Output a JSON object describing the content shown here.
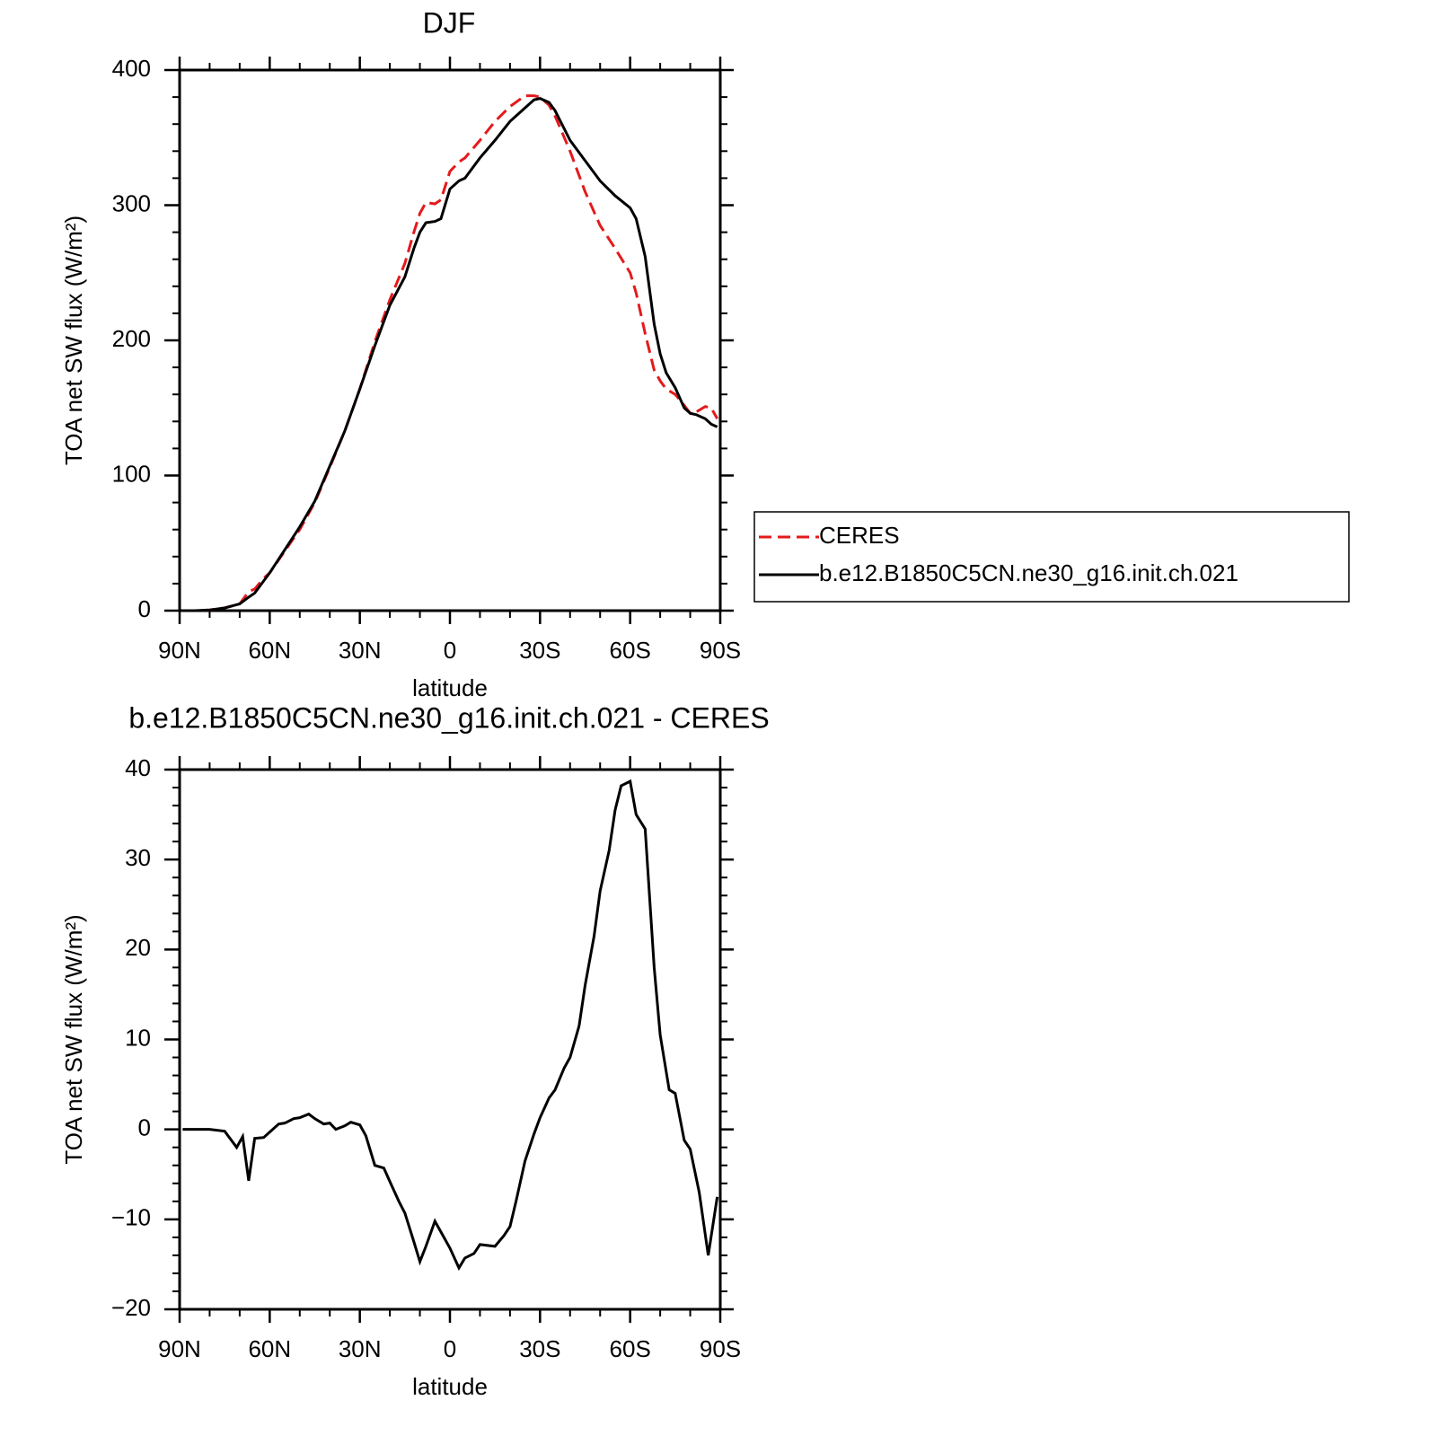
{
  "chart_data": [
    {
      "type": "line",
      "title": "DJF",
      "ylabel": "TOA net SW flux (W/m²)",
      "xlabel": "latitude",
      "xlim": [
        90,
        -90
      ],
      "ylim": [
        0,
        400
      ],
      "xticks": [
        {
          "value": 90,
          "label": "90N"
        },
        {
          "value": 60,
          "label": "60N"
        },
        {
          "value": 30,
          "label": "30N"
        },
        0,
        {
          "value": -30,
          "label": "30S"
        },
        {
          "value": -60,
          "label": "60S"
        },
        {
          "value": -90,
          "label": "90S"
        }
      ],
      "xminorticks": [
        80,
        70,
        50,
        40,
        20,
        10,
        -10,
        -20,
        -40,
        -50,
        -70,
        -80
      ],
      "yticks": [
        0,
        100,
        200,
        300,
        400
      ],
      "yminorticks": [
        20,
        40,
        60,
        80,
        120,
        140,
        160,
        180,
        220,
        240,
        260,
        280,
        320,
        340,
        360,
        380
      ],
      "legend": "right",
      "x": [
        89,
        85,
        80,
        75,
        70,
        67,
        65,
        62,
        60,
        55,
        50,
        45,
        40,
        35,
        30,
        25,
        20,
        15,
        12,
        10,
        8,
        5,
        3,
        0,
        -3,
        -5,
        -10,
        -15,
        -20,
        -25,
        -28,
        -30,
        -33,
        -35,
        -40,
        -45,
        -50,
        -55,
        -60,
        -62,
        -65,
        -68,
        -70,
        -72,
        -75,
        -78,
        -80,
        -82,
        -85,
        -87,
        -89
      ],
      "series": [
        {
          "name": "CERES",
          "color": "#e41a1c",
          "dash": true,
          "values": [
            0,
            0,
            0.5,
            2,
            5,
            14,
            16,
            24,
            28,
            44,
            60,
            80,
            106,
            133,
            164,
            199,
            230,
            257,
            280,
            294,
            302,
            301,
            304,
            325,
            332,
            335,
            348,
            362,
            373,
            381,
            381,
            380,
            374,
            366,
            340,
            310,
            285,
            268,
            250,
            235,
            205,
            178,
            170,
            164,
            160,
            152,
            146,
            147,
            151,
            150,
            142
          ]
        },
        {
          "name": "b.e12.B1850C5CN.ne30_g16.init.ch.021",
          "color": "#000000",
          "dash": false,
          "values": [
            0,
            0,
            0.5,
            2,
            5,
            10,
            13,
            22,
            28,
            45,
            62,
            81,
            107,
            133,
            164,
            196,
            226,
            247,
            268,
            280,
            287,
            288,
            290,
            312,
            318,
            320,
            335,
            348,
            362,
            372,
            378,
            379,
            376,
            370,
            348,
            333,
            318,
            307,
            298,
            290,
            262,
            212,
            190,
            176,
            165,
            150,
            146,
            145,
            142,
            138,
            136
          ]
        }
      ]
    },
    {
      "type": "line",
      "title": "b.e12.B1850C5CN.ne30_g16.init.ch.021 - CERES",
      "ylabel": "TOA net SW flux (W/m²)",
      "xlabel": "latitude",
      "xlim": [
        90,
        -90
      ],
      "ylim": [
        -20,
        40
      ],
      "xticks": [
        {
          "value": 90,
          "label": "90N"
        },
        {
          "value": 60,
          "label": "60N"
        },
        {
          "value": 30,
          "label": "30N"
        },
        0,
        {
          "value": -30,
          "label": "30S"
        },
        {
          "value": -60,
          "label": "60S"
        },
        {
          "value": -90,
          "label": "90S"
        }
      ],
      "xminorticks": [
        80,
        70,
        50,
        40,
        20,
        10,
        -10,
        -20,
        -40,
        -50,
        -70,
        -80
      ],
      "yticks": [
        {
          "value": -20,
          "label": "−20"
        },
        {
          "value": -10,
          "label": "−10"
        },
        0,
        10,
        20,
        30,
        40
      ],
      "yminorticks": [
        -18,
        -16,
        -14,
        -12,
        -8,
        -6,
        -4,
        -2,
        2,
        4,
        6,
        8,
        12,
        14,
        16,
        18,
        22,
        24,
        26,
        28,
        32,
        34,
        36,
        38
      ],
      "color": "#000000",
      "x": [
        89,
        85,
        80,
        75,
        71,
        69,
        67,
        65,
        62,
        60,
        57,
        55,
        52,
        50,
        47,
        45,
        42,
        40,
        38,
        35,
        33,
        30,
        28,
        25,
        22,
        20,
        17,
        15,
        12,
        10,
        8,
        5,
        2,
        0,
        -3,
        -5,
        -8,
        -10,
        -15,
        -18,
        -20,
        -22,
        -25,
        -28,
        -30,
        -33,
        -35,
        -38,
        -40,
        -43,
        -45,
        -48,
        -50,
        -53,
        -55,
        -57,
        -60,
        -62,
        -65,
        -68,
        -70,
        -73,
        -75,
        -78,
        -80,
        -83,
        -86,
        -89
      ],
      "values": [
        0,
        0,
        0,
        -0.2,
        -2,
        -0.8,
        -5.7,
        -1,
        -0.9,
        -0.3,
        0.6,
        0.7,
        1.2,
        1.3,
        1.7,
        1.2,
        0.6,
        0.7,
        0,
        0.4,
        0.8,
        0.5,
        -0.7,
        -4,
        -4.3,
        -5.8,
        -8,
        -9.3,
        -12.5,
        -14.7,
        -13,
        -10.2,
        -12,
        -13.2,
        -15.4,
        -14.3,
        -13.8,
        -12.8,
        -13,
        -11.8,
        -10.8,
        -8,
        -3.5,
        -0.5,
        1.3,
        3.5,
        4.4,
        6.8,
        8,
        11.5,
        16,
        21.5,
        26.5,
        31,
        35.5,
        38.2,
        38.7,
        35,
        33.4,
        18,
        10.5,
        4.4,
        4,
        -1.2,
        -2.2,
        -7,
        -14,
        -7.5
      ]
    }
  ]
}
